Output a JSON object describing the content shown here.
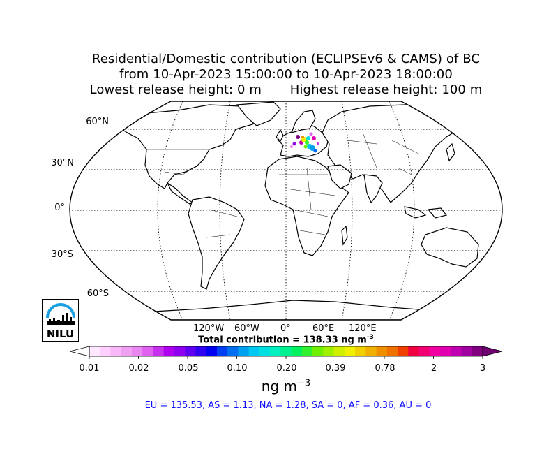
{
  "title": {
    "line1": "Residential/Domestic contribution (ECLIPSEv6 & CAMS) of BC",
    "line2": "from 10-Apr-2023 15:00:00 to 10-Apr-2023 18:00:00",
    "line3": "Lowest release height: 0 m       Highest release height: 100 m"
  },
  "map": {
    "projection": "Robinson",
    "lat_labels": [
      "60°N",
      "30°N",
      "0°",
      "30°S",
      "60°S"
    ],
    "lon_labels": [
      "120°W",
      "60°W",
      "0°",
      "60°E",
      "120°E"
    ],
    "plume_region": "Europe",
    "coast_color": "#000000"
  },
  "total": {
    "prefix": "Total contribution = 138.33 ng m",
    "exp": "-3"
  },
  "colorbar": {
    "tick_labels": [
      "0.01",
      "0.02",
      "0.05",
      "0.10",
      "0.20",
      "0.39",
      "0.78",
      "2",
      "3"
    ],
    "colors": [
      "#ffe8ff",
      "#ffd0ff",
      "#f8b8f8",
      "#f0a0f0",
      "#e888f0",
      "#e060f0",
      "#c830f0",
      "#b000f0",
      "#9000f0",
      "#6000f0",
      "#3000f0",
      "#0000f0",
      "#0040f0",
      "#0070f0",
      "#00a0f0",
      "#00c8f0",
      "#00e0e0",
      "#00f0c0",
      "#00f090",
      "#00f060",
      "#30f030",
      "#70f000",
      "#a0f000",
      "#d0f000",
      "#f0f000",
      "#f0d000",
      "#f0b000",
      "#f09000",
      "#f07000",
      "#f04000",
      "#f00040",
      "#f00070",
      "#f000a0",
      "#e000b0",
      "#c000b0",
      "#a000a0",
      "#800080"
    ],
    "under_color": "#ffffff",
    "over_color": "#700070"
  },
  "units": {
    "base": "ng m",
    "exp": "−3"
  },
  "regions_text": "EU = 135.53,  AS = 1.13,  NA = 1.28,  SA = 0,  AF = 0.36,  AU = 0",
  "logo": {
    "text": "NILU",
    "arc_color": "#1aa0e0"
  }
}
